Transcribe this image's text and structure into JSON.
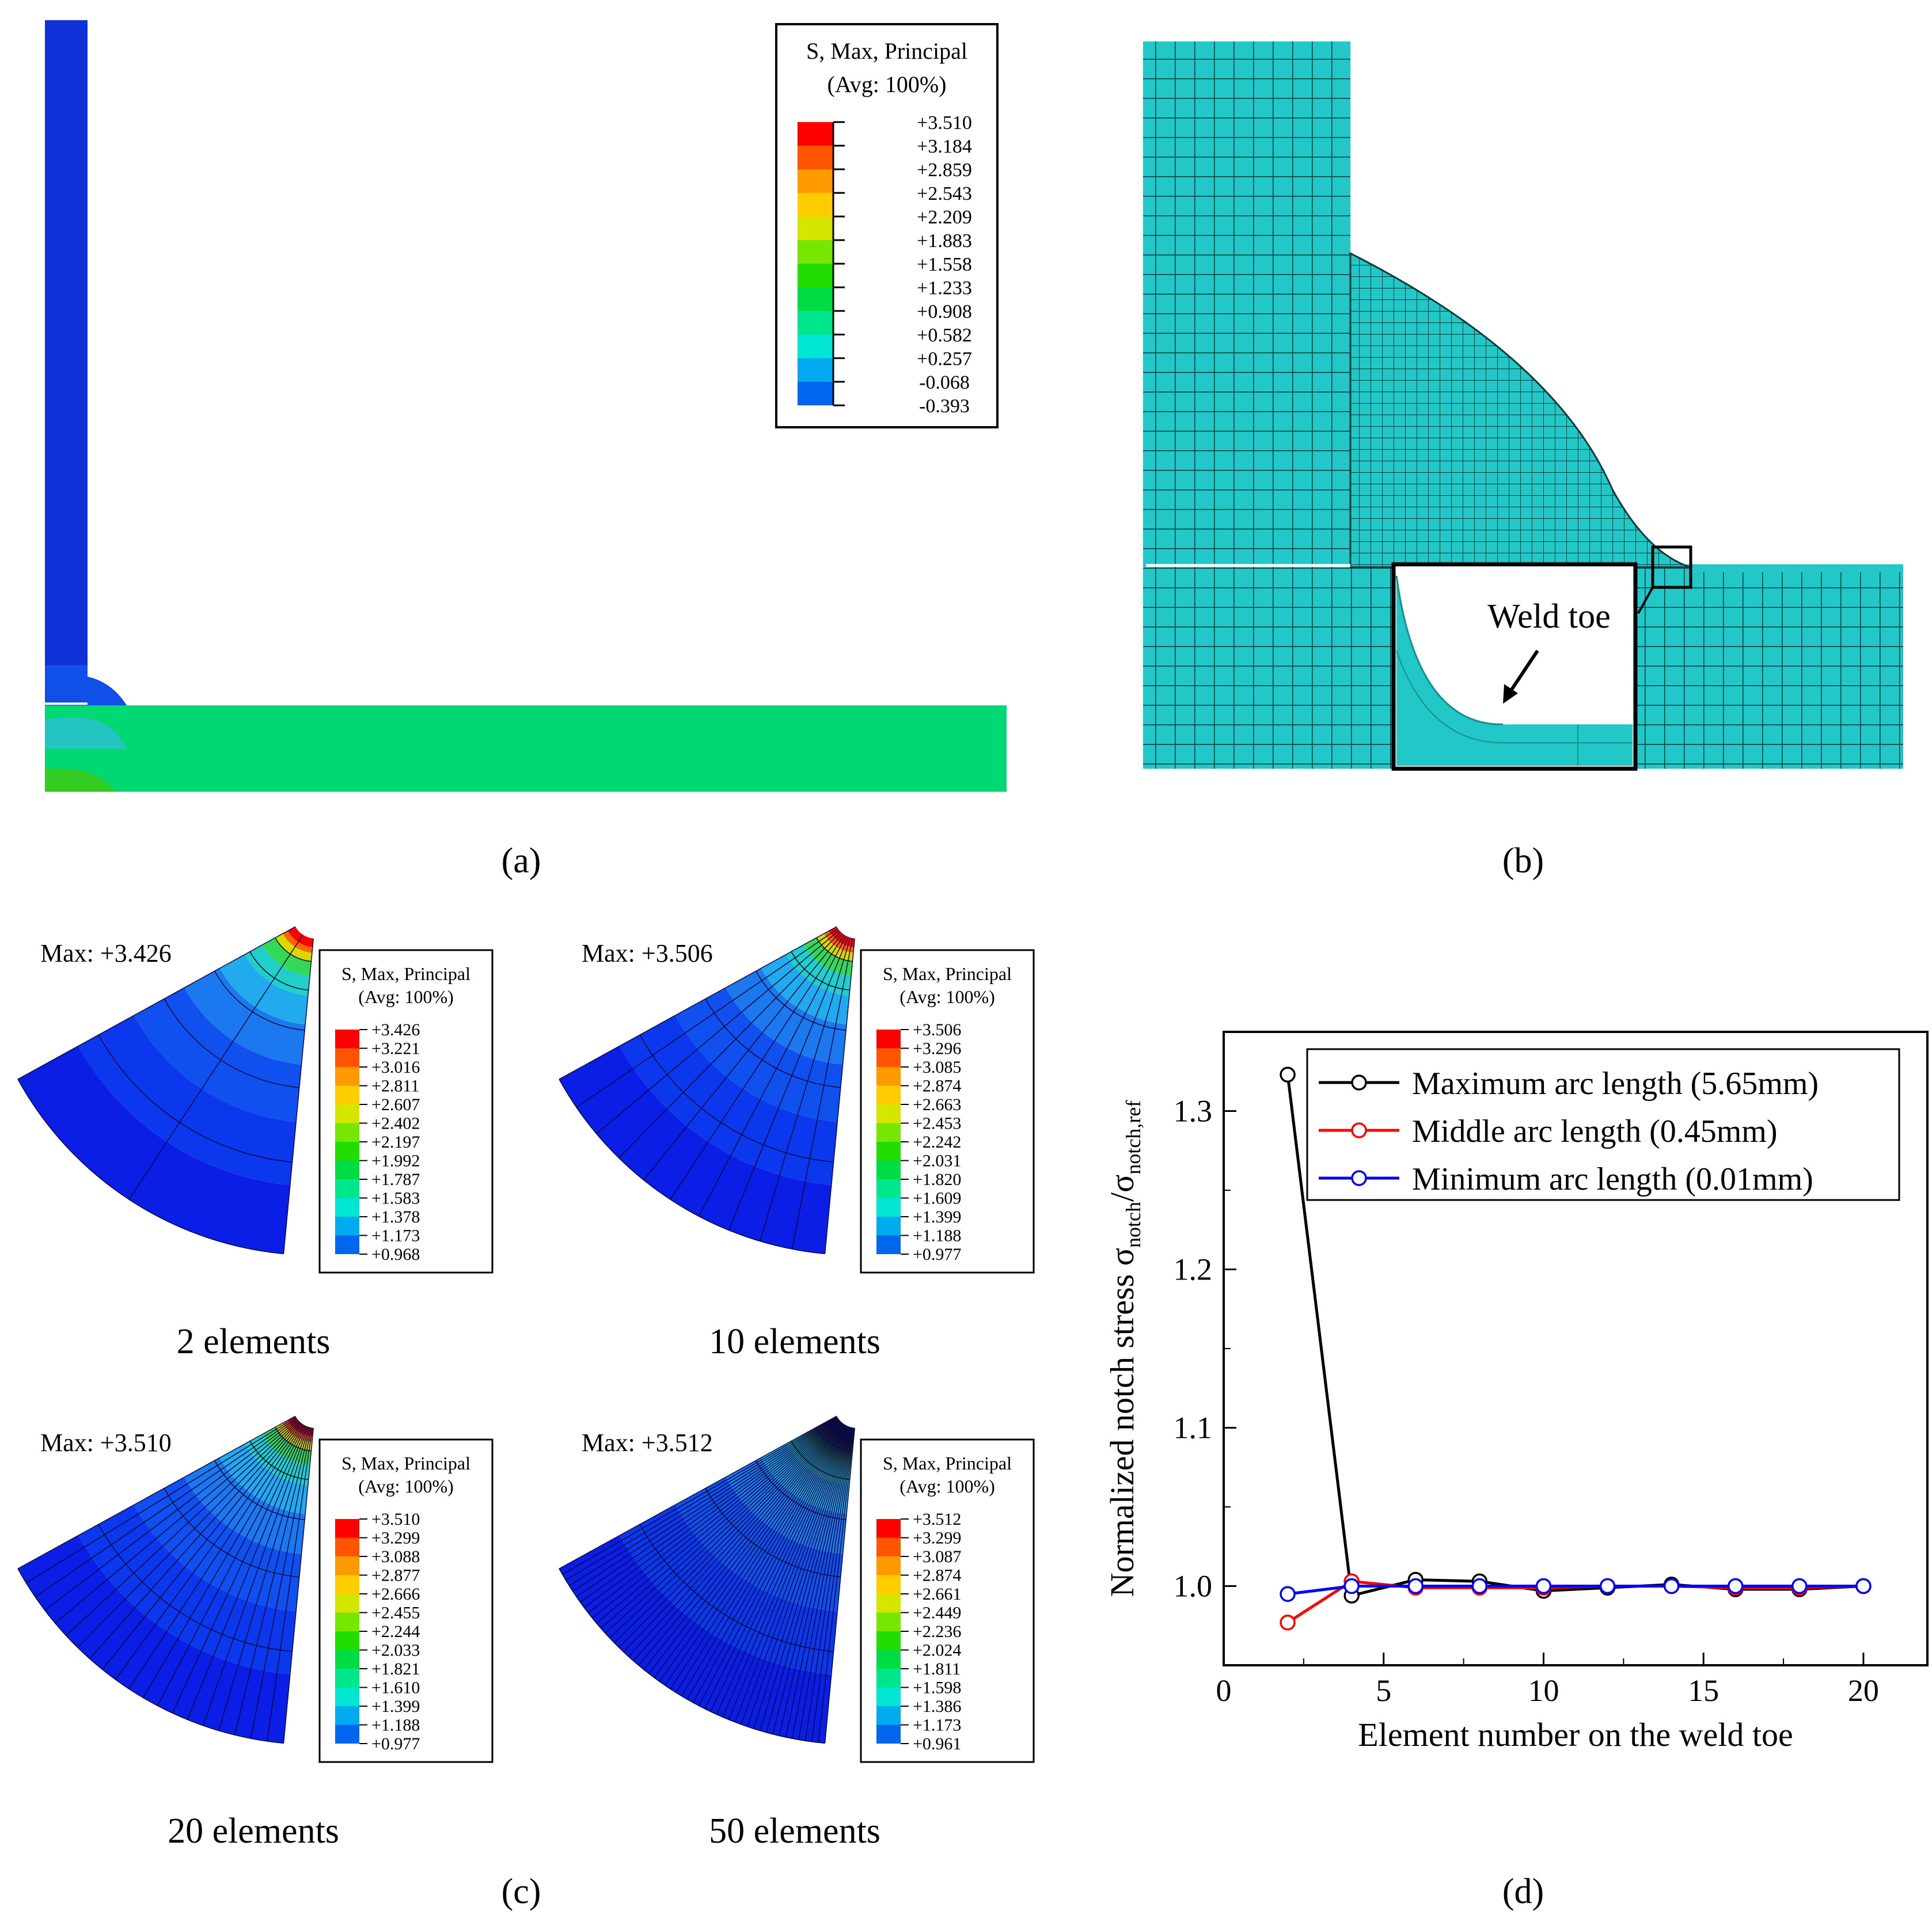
{
  "figure": {
    "panels": {
      "a": {
        "caption": "(a)",
        "letter": "a"
      },
      "b": {
        "caption": "(b)",
        "letter": "b",
        "annotation": "Weld toe"
      },
      "c": {
        "caption": "(c)",
        "letter": "c"
      },
      "d": {
        "caption": "(d)",
        "letter": "d"
      }
    },
    "legend_a": {
      "title_line1": "S, Max, Principal",
      "title_line2": "(Avg: 100%)",
      "values": [
        "+3.510",
        "+3.184",
        "+2.859",
        "+2.543",
        "+2.209",
        "+1.883",
        "+1.558",
        "+1.233",
        "+0.908",
        "+0.582",
        "+0.257",
        "-0.068",
        "-0.393"
      ]
    },
    "sub_models": [
      {
        "label": "2 elements",
        "max": "Max: +3.426",
        "legend_title1": "S, Max, Principal",
        "legend_title2": "(Avg: 100%)",
        "values": [
          "+3.426",
          "+3.221",
          "+3.016",
          "+2.811",
          "+2.607",
          "+2.402",
          "+2.197",
          "+1.992",
          "+1.787",
          "+1.583",
          "+1.378",
          "+1.173",
          "+0.968"
        ]
      },
      {
        "label": "10 elements",
        "max": "Max: +3.506",
        "legend_title1": "S, Max, Principal",
        "legend_title2": "(Avg: 100%)",
        "values": [
          "+3.506",
          "+3.296",
          "+3.085",
          "+2.874",
          "+2.663",
          "+2.453",
          "+2.242",
          "+2.031",
          "+1.820",
          "+1.609",
          "+1.399",
          "+1.188",
          "+0.977"
        ]
      },
      {
        "label": "20 elements",
        "max": "Max: +3.510",
        "legend_title1": "S, Max, Principal",
        "legend_title2": "(Avg: 100%)",
        "values": [
          "+3.510",
          "+3.299",
          "+3.088",
          "+2.877",
          "+2.666",
          "+2.455",
          "+2.244",
          "+2.033",
          "+1.821",
          "+1.610",
          "+1.399",
          "+1.188",
          "+0.977"
        ]
      },
      {
        "label": "50 elements",
        "max": "Max: +3.512",
        "legend_title1": "S, Max, Principal",
        "legend_title2": "(Avg: 100%)",
        "values": [
          "+3.512",
          "+3.299",
          "+3.087",
          "+2.874",
          "+2.661",
          "+2.449",
          "+2.236",
          "+2.024",
          "+1.811",
          "+1.598",
          "+1.386",
          "+1.173",
          "+0.961"
        ]
      }
    ],
    "contour_colors": [
      "#ff0000",
      "#ff5500",
      "#ff9900",
      "#ffcc00",
      "#d4e600",
      "#77e600",
      "#22dd00",
      "#00dd44",
      "#00e68a",
      "#00e6d2",
      "#00aaee",
      "#0066ee",
      "#0000ff"
    ]
  },
  "chart_data": {
    "type": "line",
    "title": "",
    "xlabel": "Element number on the weld toe",
    "ylabel_main": "Normalized notch stress σ",
    "ylabel_sub1": "notch",
    "ylabel_slash": "/σ",
    "ylabel_sub2": "notch,ref",
    "xlim": [
      0,
      22
    ],
    "ylim": [
      0.95,
      1.35
    ],
    "xticks": [
      "0",
      "5",
      "10",
      "15",
      "20"
    ],
    "yticks": [
      "1.0",
      "1.1",
      "1.2",
      "1.3"
    ],
    "legend_position": "top-right",
    "series": [
      {
        "name": "Maximum arc length (5.65mm)",
        "color": "#000000",
        "x": [
          2,
          4,
          6,
          8,
          10,
          12,
          14,
          16,
          18,
          20
        ],
        "y": [
          1.323,
          0.994,
          1.004,
          1.003,
          0.997,
          0.999,
          1.001,
          0.998,
          0.998,
          1.0
        ]
      },
      {
        "name": "Middle arc length (0.45mm)",
        "color": "#ff0000",
        "x": [
          2,
          4,
          6,
          8,
          10,
          12,
          14,
          16,
          18,
          20
        ],
        "y": [
          0.977,
          1.003,
          0.999,
          0.999,
          0.999,
          1.0,
          1.0,
          0.999,
          0.999,
          1.0
        ]
      },
      {
        "name": "Minimum arc length (0.01mm)",
        "color": "#0000ff",
        "x": [
          2,
          4,
          6,
          8,
          10,
          12,
          14,
          16,
          18,
          20
        ],
        "y": [
          0.995,
          1.0,
          1.0,
          1.0,
          1.0,
          1.0,
          1.0,
          1.0,
          1.0,
          1.0
        ]
      }
    ]
  }
}
